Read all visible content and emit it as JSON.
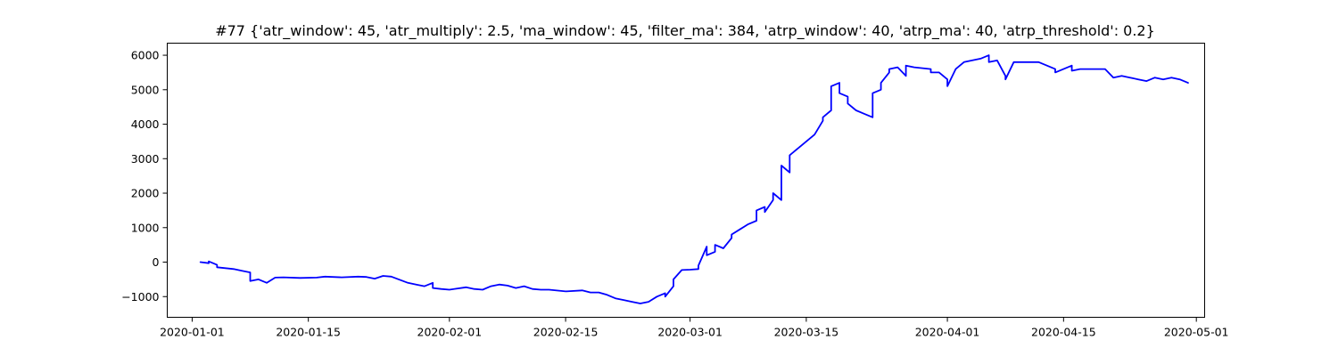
{
  "chart_data": {
    "type": "line",
    "title": "#77 {'atr_window': 45, 'atr_multiply': 2.5, 'ma_window': 45, 'filter_ma': 384, 'atrp_window': 40, 'atrp_ma': 40, 'atrp_threshold': 0.2}",
    "xlabel": "",
    "ylabel": "",
    "x_axis_type": "date",
    "xlim": [
      "2019-12-29",
      "2020-05-02"
    ],
    "ylim": [
      -1600,
      6350
    ],
    "grid": false,
    "legend": "none",
    "x_ticks": [
      "2020-01-01",
      "2020-01-15",
      "2020-02-01",
      "2020-02-15",
      "2020-03-01",
      "2020-03-15",
      "2020-04-01",
      "2020-04-15",
      "2020-05-01"
    ],
    "y_ticks": [
      -1000,
      0,
      1000,
      2000,
      3000,
      4000,
      5000,
      6000
    ],
    "series": [
      {
        "color": "#0000ff",
        "x": [
          "2020-01-02",
          "2020-01-03",
          "2020-01-03",
          "2020-01-04",
          "2020-01-04",
          "2020-01-06",
          "2020-01-07",
          "2020-01-08",
          "2020-01-08",
          "2020-01-09",
          "2020-01-10",
          "2020-01-11",
          "2020-01-12",
          "2020-01-14",
          "2020-01-16",
          "2020-01-17",
          "2020-01-19",
          "2020-01-21",
          "2020-01-22",
          "2020-01-23",
          "2020-01-24",
          "2020-01-25",
          "2020-01-27",
          "2020-01-28",
          "2020-01-29",
          "2020-01-30",
          "2020-01-30",
          "2020-01-31",
          "2020-02-01",
          "2020-02-03",
          "2020-02-04",
          "2020-02-05",
          "2020-02-06",
          "2020-02-07",
          "2020-02-08",
          "2020-02-09",
          "2020-02-10",
          "2020-02-11",
          "2020-02-12",
          "2020-02-13",
          "2020-02-15",
          "2020-02-17",
          "2020-02-18",
          "2020-02-19",
          "2020-02-20",
          "2020-02-21",
          "2020-02-22",
          "2020-02-23",
          "2020-02-24",
          "2020-02-25",
          "2020-02-26",
          "2020-02-27",
          "2020-02-27",
          "2020-02-28",
          "2020-02-28",
          "2020-02-29",
          "2020-03-01",
          "2020-03-02",
          "2020-03-02",
          "2020-03-03",
          "2020-03-03",
          "2020-03-04",
          "2020-03-04",
          "2020-03-05",
          "2020-03-06",
          "2020-03-06",
          "2020-03-07",
          "2020-03-08",
          "2020-03-09",
          "2020-03-09",
          "2020-03-10",
          "2020-03-10",
          "2020-03-11",
          "2020-03-11",
          "2020-03-12",
          "2020-03-12",
          "2020-03-13",
          "2020-03-13",
          "2020-03-14",
          "2020-03-16",
          "2020-03-17",
          "2020-03-17",
          "2020-03-18",
          "2020-03-18",
          "2020-03-19",
          "2020-03-19",
          "2020-03-20",
          "2020-03-20",
          "2020-03-21",
          "2020-03-22",
          "2020-03-23",
          "2020-03-23",
          "2020-03-24",
          "2020-03-24",
          "2020-03-25",
          "2020-03-25",
          "2020-03-26",
          "2020-03-27",
          "2020-03-27",
          "2020-03-28",
          "2020-03-30",
          "2020-03-30",
          "2020-03-31",
          "2020-04-01",
          "2020-04-01",
          "2020-04-02",
          "2020-04-03",
          "2020-04-05",
          "2020-04-06",
          "2020-04-06",
          "2020-04-07",
          "2020-04-08",
          "2020-04-08",
          "2020-04-09",
          "2020-04-12",
          "2020-04-13",
          "2020-04-14",
          "2020-04-14",
          "2020-04-16",
          "2020-04-16",
          "2020-04-17",
          "2020-04-20",
          "2020-04-21",
          "2020-04-22",
          "2020-04-23",
          "2020-04-24",
          "2020-04-25",
          "2020-04-26",
          "2020-04-27",
          "2020-04-28",
          "2020-04-29",
          "2020-04-30"
        ],
        "y": [
          0,
          -30,
          20,
          -80,
          -150,
          -200,
          -250,
          -300,
          -550,
          -500,
          -600,
          -450,
          -440,
          -460,
          -450,
          -420,
          -440,
          -420,
          -430,
          -480,
          -400,
          -420,
          -600,
          -650,
          -700,
          -600,
          -750,
          -780,
          -800,
          -730,
          -780,
          -800,
          -700,
          -650,
          -680,
          -750,
          -700,
          -780,
          -800,
          -800,
          -850,
          -820,
          -880,
          -880,
          -950,
          -1050,
          -1100,
          -1150,
          -1200,
          -1150,
          -1000,
          -900,
          -1000,
          -700,
          -500,
          -230,
          -220,
          -200,
          -100,
          450,
          200,
          300,
          500,
          400,
          700,
          800,
          950,
          1100,
          1200,
          1500,
          1600,
          1450,
          1800,
          2000,
          1800,
          2800,
          2600,
          3100,
          3300,
          3700,
          4100,
          4200,
          4400,
          5100,
          5200,
          4900,
          4800,
          4600,
          4400,
          4300,
          4200,
          4900,
          5000,
          5200,
          5500,
          5600,
          5650,
          5400,
          5700,
          5650,
          5600,
          5500,
          5500,
          5300,
          5100,
          5600,
          5800,
          5900,
          6000,
          5800,
          5850,
          5400,
          5300,
          5800,
          5800,
          5700,
          5600,
          5500,
          5700,
          5550,
          5600,
          5600,
          5350,
          5400,
          5350,
          5300,
          5250,
          5350,
          5300,
          5350,
          5300,
          5200
        ]
      }
    ]
  }
}
